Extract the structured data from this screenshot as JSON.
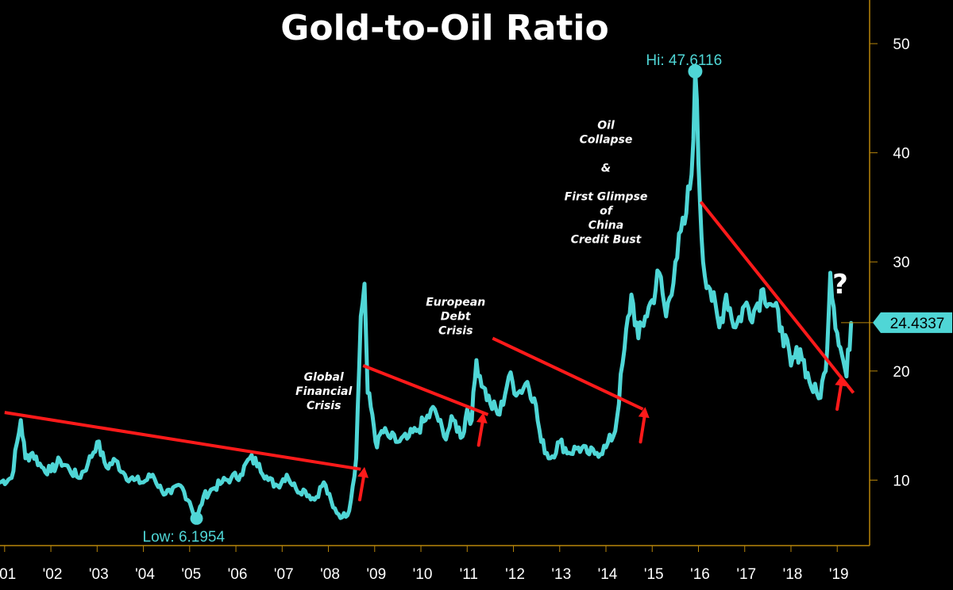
{
  "chart_data": {
    "type": "line",
    "title": "Gold-to-Oil Ratio",
    "xlabel": "",
    "ylabel": "",
    "ylim": [
      4,
      54
    ],
    "xlim": [
      2000.9,
      2019.7
    ],
    "y_ticks": [
      10,
      20,
      30,
      40,
      50
    ],
    "x_ticks": [
      {
        "label": "'01",
        "x": 2001.0
      },
      {
        "label": "'02",
        "x": 2002.0
      },
      {
        "label": "'03",
        "x": 2003.0
      },
      {
        "label": "'04",
        "x": 2004.0
      },
      {
        "label": "'05",
        "x": 2005.0
      },
      {
        "label": "'06",
        "x": 2006.0
      },
      {
        "label": "'07",
        "x": 2007.0
      },
      {
        "label": "'08",
        "x": 2008.0
      },
      {
        "label": "'09",
        "x": 2009.0
      },
      {
        "label": "'10",
        "x": 2010.0
      },
      {
        "label": "'11",
        "x": 2011.0
      },
      {
        "label": "'12",
        "x": 2012.0
      },
      {
        "label": "'13",
        "x": 2013.0
      },
      {
        "label": "'14",
        "x": 2014.0
      },
      {
        "label": "'15",
        "x": 2015.0
      },
      {
        "label": "'16",
        "x": 2016.0
      },
      {
        "label": "'17",
        "x": 2017.0
      },
      {
        "label": "'18",
        "x": 2018.0
      },
      {
        "label": "'19",
        "x": 2019.0
      }
    ],
    "series": [
      {
        "name": "Gold-to-Oil Ratio",
        "color": "#4fd6d6",
        "x": [
          2000.9,
          2001.15,
          2001.35,
          2001.45,
          2001.6,
          2001.8,
          2002.0,
          2002.2,
          2002.4,
          2002.6,
          2002.8,
          2003.0,
          2003.2,
          2003.4,
          2003.6,
          2003.8,
          2004.0,
          2004.2,
          2004.4,
          2004.6,
          2004.8,
          2005.0,
          2005.15,
          2005.3,
          2005.5,
          2005.7,
          2005.9,
          2006.1,
          2006.3,
          2006.5,
          2006.7,
          2006.9,
          2007.1,
          2007.3,
          2007.5,
          2007.7,
          2007.9,
          2008.1,
          2008.3,
          2008.45,
          2008.6,
          2008.7,
          2008.78,
          2008.85,
          2008.95,
          2009.05,
          2009.15,
          2009.3,
          2009.5,
          2009.7,
          2009.9,
          2010.1,
          2010.3,
          2010.5,
          2010.7,
          2010.9,
          2011.0,
          2011.1,
          2011.2,
          2011.35,
          2011.5,
          2011.7,
          2011.9,
          2012.1,
          2012.3,
          2012.45,
          2012.6,
          2012.8,
          2013.0,
          2013.2,
          2013.4,
          2013.6,
          2013.8,
          2014.0,
          2014.2,
          2014.4,
          2014.55,
          2014.7,
          2014.85,
          2015.0,
          2015.15,
          2015.3,
          2015.5,
          2015.7,
          2015.85,
          2015.93,
          2016.0,
          2016.1,
          2016.25,
          2016.45,
          2016.6,
          2016.8,
          2017.0,
          2017.2,
          2017.4,
          2017.6,
          2017.8,
          2018.0,
          2018.2,
          2018.4,
          2018.6,
          2018.75,
          2018.85,
          2019.0,
          2019.1,
          2019.2,
          2019.3
        ],
        "y": [
          9.8,
          10.2,
          15.5,
          12.0,
          12.5,
          11.2,
          10.8,
          11.8,
          11.0,
          10.2,
          11.5,
          13.5,
          11.2,
          11.8,
          10.5,
          10.0,
          9.8,
          10.5,
          9.0,
          8.8,
          9.5,
          8.0,
          6.3,
          8.5,
          9.2,
          9.8,
          10.2,
          10.5,
          12.0,
          11.5,
          10.0,
          9.5,
          10.5,
          9.2,
          9.0,
          8.2,
          9.8,
          7.5,
          6.6,
          7.2,
          12.0,
          25.0,
          28.0,
          18.0,
          16.0,
          13.0,
          14.5,
          14.0,
          13.5,
          13.8,
          14.5,
          15.5,
          16.5,
          14.0,
          15.5,
          14.0,
          16.5,
          15.5,
          21.0,
          18.5,
          17.0,
          16.0,
          19.5,
          18.0,
          19.0,
          17.5,
          13.5,
          12.0,
          13.5,
          12.5,
          13.0,
          12.5,
          12.5,
          13.0,
          14.5,
          22.0,
          27.0,
          23.0,
          25.0,
          26.5,
          29.0,
          25.0,
          30.0,
          33.5,
          38.0,
          47.6,
          39.0,
          30.0,
          27.5,
          24.0,
          27.0,
          24.0,
          26.0,
          25.5,
          27.5,
          26.0,
          24.0,
          20.5,
          22.0,
          19.0,
          17.5,
          20.0,
          29.0,
          23.5,
          21.5,
          19.5,
          24.4
        ]
      }
    ],
    "trendlines": [
      {
        "from": [
          2001.0,
          16.2
        ],
        "to": [
          2008.7,
          11.0
        ]
      },
      {
        "from": [
          2008.75,
          20.5
        ],
        "to": [
          2011.45,
          16.0
        ]
      },
      {
        "from": [
          2011.55,
          23.0
        ],
        "to": [
          2014.8,
          16.5
        ]
      },
      {
        "from": [
          2016.05,
          35.5
        ],
        "to": [
          2019.35,
          18.0
        ]
      }
    ],
    "arrows": [
      {
        "x": 2008.78,
        "y_from": 8.2,
        "y_to": 11.2
      },
      {
        "x": 2011.35,
        "y_from": 13.2,
        "y_to": 16.2
      },
      {
        "x": 2014.85,
        "y_from": 13.5,
        "y_to": 16.7
      },
      {
        "x": 2019.1,
        "y_from": 16.5,
        "y_to": 19.6
      }
    ],
    "annotations": [
      {
        "lines": [
          "Global",
          "Financial",
          "Crisis"
        ],
        "x": 2007.9,
        "y": 19.1
      },
      {
        "lines": [
          "European",
          "Debt",
          "Crisis"
        ],
        "x": 2010.75,
        "y": 26.0
      },
      {
        "lines": [
          "Oil",
          "Collapse",
          "",
          "&",
          "",
          "First Glimpse",
          "of",
          "China",
          "Credit Bust"
        ],
        "x": 2014.0,
        "y": 42.2
      }
    ],
    "high": {
      "label": "Hi: 47.6116",
      "x": 2015.93,
      "y": 47.6116
    },
    "low": {
      "label": "Low: 6.1954",
      "x": 2005.15,
      "y": 6.1954
    },
    "last_value": {
      "label": "24.4337",
      "value": 24.4337
    },
    "question_mark": "?",
    "colors": {
      "background": "#000000",
      "line": "#4fd6d6",
      "trend": "#ff1a1a",
      "axis": "#b8860b",
      "text": "#ffffff"
    }
  }
}
